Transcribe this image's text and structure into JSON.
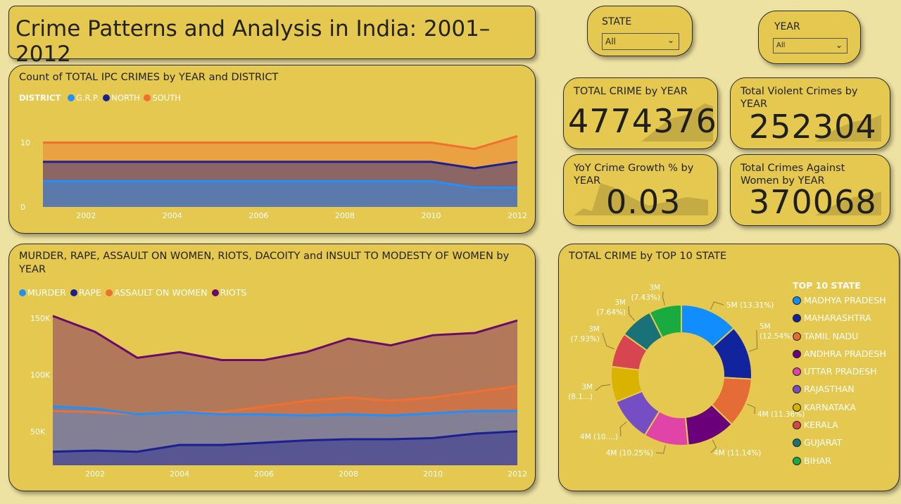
{
  "header": {
    "title": "Crime Patterns and Analysis in India: 2001–2012"
  },
  "filters": {
    "state": {
      "label": "STATE",
      "value": "All"
    },
    "year": {
      "label": "YEAR",
      "value": "All"
    }
  },
  "kpis": {
    "total_crime": {
      "label": "TOTAL CRIME by YEAR",
      "value": "4774376"
    },
    "violent": {
      "label": "Total Violent Crimes by YEAR",
      "value": "252304"
    },
    "yoy": {
      "label": "YoY Crime Growth % by YEAR",
      "value": "0.03"
    },
    "women": {
      "label": "Total Crimes Against Women by YEAR",
      "value": "370068"
    }
  },
  "colors": {
    "blue": "#1e90ff",
    "navy": "#1a2090",
    "orange": "#f07030",
    "purple": "#6a0a6a"
  },
  "chart_data": [
    {
      "type": "area",
      "title": "Count of TOTAL IPC CRIMES by YEAR and DISTRICT",
      "legend_title": "DISTRICT",
      "x": [
        2001,
        2002,
        2003,
        2004,
        2005,
        2006,
        2007,
        2008,
        2009,
        2010,
        2011,
        2012
      ],
      "x_ticks": [
        2002,
        2004,
        2006,
        2008,
        2010,
        2012
      ],
      "y_ticks": [
        0,
        10
      ],
      "ylim": [
        0,
        13
      ],
      "series": [
        {
          "name": "G.R.P.",
          "color": "#1e90ff",
          "values": [
            4,
            4,
            4,
            4,
            4,
            4,
            4,
            4,
            4,
            4,
            3,
            3
          ]
        },
        {
          "name": "NORTH",
          "color": "#1a2090",
          "values": [
            7,
            7,
            7,
            7,
            7,
            7,
            7,
            7,
            7,
            7,
            6,
            7
          ]
        },
        {
          "name": "SOUTH",
          "color": "#f07030",
          "values": [
            10,
            10,
            10,
            10,
            10,
            10,
            10,
            10,
            10,
            10,
            9,
            11
          ]
        }
      ]
    },
    {
      "type": "area",
      "title": "MURDER, RAPE, ASSAULT ON WOMEN, RIOTS, DACOITY and INSULT TO MODESTY OF WOMEN by YEAR",
      "x": [
        2001,
        2002,
        2003,
        2004,
        2005,
        2006,
        2007,
        2008,
        2009,
        2010,
        2011,
        2012
      ],
      "x_ticks": [
        2002,
        2004,
        2006,
        2008,
        2010,
        2012
      ],
      "y_ticks": [
        50000,
        100000,
        150000
      ],
      "y_tick_labels": [
        "50K",
        "100K",
        "150K"
      ],
      "ylim": [
        20000,
        160000
      ],
      "series": [
        {
          "name": "MURDER",
          "color": "#1e90ff",
          "values": [
            72000,
            70000,
            65000,
            67000,
            65000,
            65000,
            64000,
            65000,
            64000,
            66000,
            68000,
            68000
          ]
        },
        {
          "name": "RAPE",
          "color": "#1a2090",
          "values": [
            32000,
            33000,
            32000,
            38000,
            38000,
            40000,
            42000,
            43000,
            43000,
            44000,
            48000,
            50000
          ]
        },
        {
          "name": "ASSAULT ON WOMEN",
          "color": "#f07030",
          "values": [
            68000,
            67000,
            65000,
            67000,
            67000,
            72000,
            77000,
            80000,
            77000,
            80000,
            85000,
            90000
          ]
        },
        {
          "name": "RIOTS",
          "color": "#6a0a6a",
          "values": [
            152000,
            138000,
            115000,
            120000,
            113000,
            113000,
            120000,
            132000,
            126000,
            135000,
            137000,
            148000
          ]
        }
      ]
    },
    {
      "type": "pie",
      "title": "TOTAL CRIME by TOP 10 STATE",
      "legend_title": "TOP 10 STATE",
      "slices": [
        {
          "name": "MADHYA PRADESH",
          "pct": 13.31,
          "label": "5M (13.31%)",
          "color": "#118dff"
        },
        {
          "name": "MAHARASHTRA",
          "pct": 12.54,
          "label": "5M (12.54%)",
          "color": "#12239e"
        },
        {
          "name": "TAMIL NADU",
          "pct": 11.36,
          "label": "4M (11.36%)",
          "color": "#e66c37"
        },
        {
          "name": "ANDHRA PRADESH",
          "pct": 11.14,
          "label": "4M (11.14%)",
          "color": "#6b007b"
        },
        {
          "name": "UTTAR PRADESH",
          "pct": 10.25,
          "label": "4M (10.25%)",
          "color": "#e044a7"
        },
        {
          "name": "RAJASTHAN",
          "pct": 10.1,
          "label": "4M (10....)",
          "color": "#744ec2"
        },
        {
          "name": "KARNATAKA",
          "pct": 8.1,
          "label": "3M (8.1...)",
          "color": "#d9b300"
        },
        {
          "name": "KERALA",
          "pct": 7.93,
          "label": "3M (7.93%)",
          "color": "#d64550"
        },
        {
          "name": "GUJARAT",
          "pct": 7.64,
          "label": "3M (7.64%)",
          "color": "#197278"
        },
        {
          "name": "BIHAR",
          "pct": 7.43,
          "label": "3M (7.43%)",
          "color": "#1aab40"
        }
      ]
    }
  ]
}
